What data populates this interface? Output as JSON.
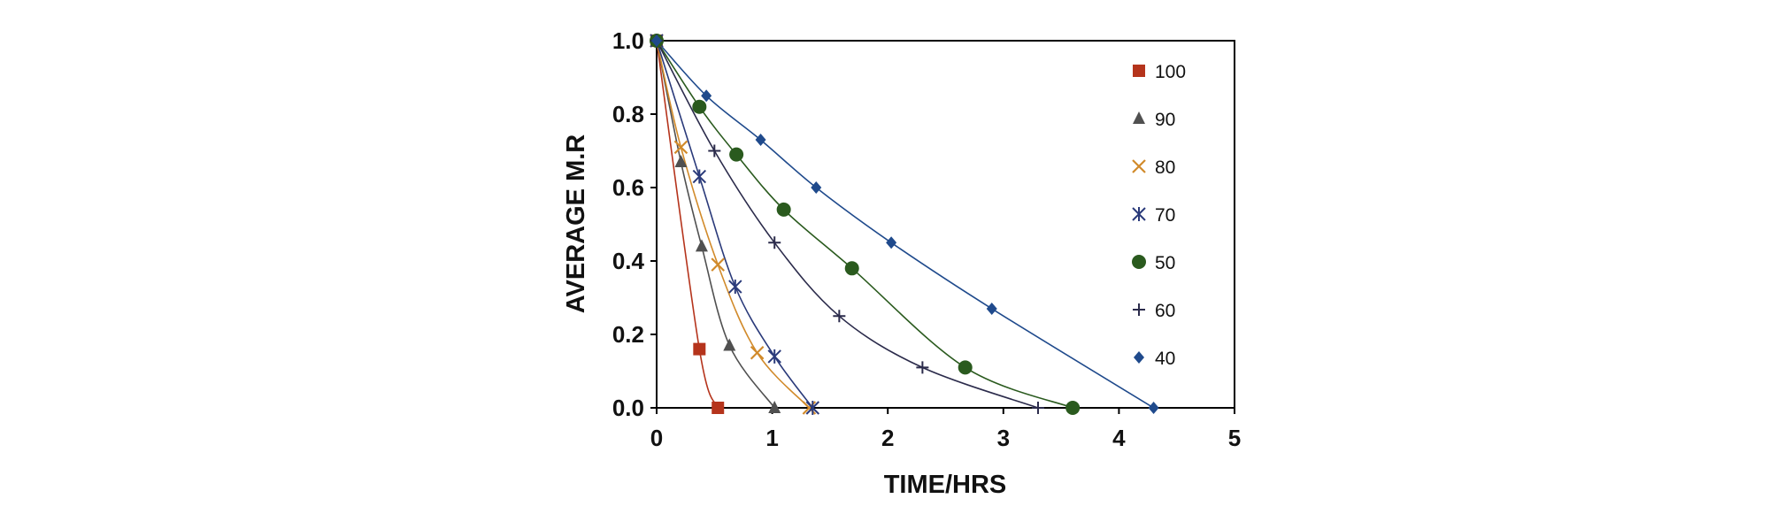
{
  "chart_data": {
    "type": "scatter",
    "title": "",
    "xlabel": "TIME/HRS",
    "ylabel": "AVERAGE M.R",
    "xlim": [
      0,
      5
    ],
    "ylim": [
      0,
      1
    ],
    "x_ticks": [
      "0",
      "1",
      "2",
      "3",
      "4",
      "5"
    ],
    "y_ticks": [
      "0.0",
      "0.2",
      "0.4",
      "0.6",
      "0.8",
      "1.0"
    ],
    "grid": false,
    "legend_position": "right inside",
    "series": [
      {
        "name": "100",
        "marker": "square",
        "color": "#b5341c",
        "x": [
          0,
          0.37,
          0.53
        ],
        "y": [
          1.0,
          0.16,
          0.0
        ]
      },
      {
        "name": "90",
        "marker": "triangle",
        "color": "#505050",
        "x": [
          0,
          0.21,
          0.39,
          0.63,
          1.02
        ],
        "y": [
          1.0,
          0.67,
          0.44,
          0.17,
          0.0
        ]
      },
      {
        "name": "80",
        "marker": "x",
        "color": "#d18a2a",
        "x": [
          0,
          0.21,
          0.53,
          0.87,
          1.32
        ],
        "y": [
          1.0,
          0.71,
          0.39,
          0.15,
          0.0
        ]
      },
      {
        "name": "70",
        "marker": "asterisk",
        "color": "#2a3a7a",
        "x": [
          0,
          0.37,
          0.68,
          1.02,
          1.35
        ],
        "y": [
          1.0,
          0.63,
          0.33,
          0.14,
          0.0
        ]
      },
      {
        "name": "50",
        "marker": "circle",
        "color": "#2a5a1e",
        "x": [
          0,
          0.37,
          0.69,
          1.1,
          1.69,
          2.67,
          3.6
        ],
        "y": [
          1.0,
          0.82,
          0.69,
          0.54,
          0.38,
          0.11,
          0.0
        ]
      },
      {
        "name": "60",
        "marker": "plus",
        "color": "#2b2b4b",
        "x": [
          0,
          0.5,
          1.02,
          1.58,
          2.3,
          3.3
        ],
        "y": [
          1.0,
          0.7,
          0.45,
          0.25,
          0.11,
          0.0
        ]
      },
      {
        "name": "40",
        "marker": "diamond",
        "color": "#1f4a8c",
        "x": [
          0,
          0.43,
          0.9,
          1.38,
          2.03,
          2.9,
          4.3
        ],
        "y": [
          1.0,
          0.85,
          0.73,
          0.6,
          0.45,
          0.27,
          0.0
        ]
      }
    ]
  }
}
